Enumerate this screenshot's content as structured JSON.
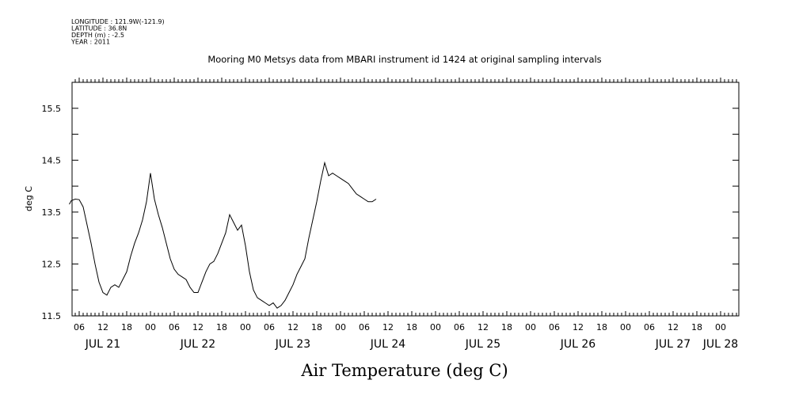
{
  "header": {
    "meta_lines": [
      "LONGITUDE : 121.9W(-121.9)",
      "LATITUDE : 36.8N",
      "DEPTH (m) : -2.5",
      "YEAR : 2011"
    ],
    "title": "Mooring M0 Metsys data from MBARI instrument id 1424 at original sampling intervals"
  },
  "chart_data": {
    "type": "line",
    "title": "Mooring M0 Metsys data from MBARI instrument id 1424 at original sampling intervals",
    "xlabel": "Air Temperature (deg C)",
    "ylabel": "deg C",
    "x_unit": "hours from JUL 21 00:00 (2011)",
    "xlim": [
      3.5,
      81.5
    ],
    "ylim": [
      11.5,
      16.0
    ],
    "y_ticks": [
      11.5,
      12.5,
      13.5,
      14.5,
      15.5
    ],
    "x_hour_ticks": [
      {
        "x": 6,
        "label": "06"
      },
      {
        "x": 12,
        "label": "12"
      },
      {
        "x": 18,
        "label": "18"
      },
      {
        "x": 24,
        "label": "00"
      },
      {
        "x": 30,
        "label": "06"
      },
      {
        "x": 36,
        "label": "12"
      },
      {
        "x": 42,
        "label": "18"
      },
      {
        "x": 48,
        "label": "00"
      },
      {
        "x": 54,
        "label": "06"
      },
      {
        "x": 60,
        "label": "12"
      },
      {
        "x": 66,
        "label": "18"
      },
      {
        "x": 72,
        "label": "00"
      },
      {
        "x": 78,
        "label": "06"
      },
      {
        "x": 84,
        "label": "12"
      },
      {
        "x": 90,
        "label": "18"
      },
      {
        "x": 96,
        "label": "00"
      },
      {
        "x": 102,
        "label": "06"
      },
      {
        "x": 108,
        "label": "12"
      },
      {
        "x": 114,
        "label": "18"
      },
      {
        "x": 120,
        "label": "00"
      },
      {
        "x": 126,
        "label": "06"
      },
      {
        "x": 132,
        "label": "12"
      },
      {
        "x": 138,
        "label": "18"
      },
      {
        "x": 144,
        "label": "00"
      },
      {
        "x": 150,
        "label": "06"
      },
      {
        "x": 156,
        "label": "12"
      },
      {
        "x": 162,
        "label": "18"
      },
      {
        "x": 168,
        "label": "00"
      }
    ],
    "day_labels": [
      {
        "x": 12,
        "label": "JUL 21"
      },
      {
        "x": 36,
        "label": "JUL 22"
      },
      {
        "x": 60,
        "label": "JUL 23"
      },
      {
        "x": 84,
        "label": "JUL 24"
      },
      {
        "x": 108,
        "label": "JUL 25"
      },
      {
        "x": 132,
        "label": "JUL 26"
      },
      {
        "x": 156,
        "label": "JUL 27"
      },
      {
        "x": 168,
        "label": "JUL 28"
      }
    ],
    "series": [
      {
        "color": "#000000",
        "points": [
          [
            3.5,
            13.65
          ],
          [
            4,
            13.72
          ],
          [
            5,
            13.75
          ],
          [
            6,
            13.74
          ],
          [
            7,
            13.6
          ],
          [
            8,
            13.25
          ],
          [
            9,
            12.9
          ],
          [
            10,
            12.5
          ],
          [
            11,
            12.15
          ],
          [
            12,
            11.95
          ],
          [
            13,
            11.9
          ],
          [
            14,
            12.05
          ],
          [
            15,
            12.1
          ],
          [
            16,
            12.05
          ],
          [
            17,
            12.2
          ],
          [
            18,
            12.35
          ],
          [
            19,
            12.65
          ],
          [
            20,
            12.9
          ],
          [
            21,
            13.1
          ],
          [
            22,
            13.35
          ],
          [
            23,
            13.7
          ],
          [
            24,
            14.25
          ],
          [
            25,
            13.75
          ],
          [
            26,
            13.45
          ],
          [
            27,
            13.2
          ],
          [
            28,
            12.9
          ],
          [
            29,
            12.6
          ],
          [
            30,
            12.4
          ],
          [
            31,
            12.3
          ],
          [
            32,
            12.25
          ],
          [
            33,
            12.2
          ],
          [
            34,
            12.05
          ],
          [
            35,
            11.95
          ],
          [
            36,
            11.95
          ],
          [
            37,
            12.15
          ],
          [
            38,
            12.35
          ],
          [
            39,
            12.5
          ],
          [
            40,
            12.55
          ],
          [
            41,
            12.7
          ],
          [
            42,
            12.9
          ],
          [
            43,
            13.1
          ],
          [
            44,
            13.45
          ],
          [
            45,
            13.3
          ],
          [
            46,
            13.15
          ],
          [
            47,
            13.25
          ],
          [
            48,
            12.85
          ],
          [
            49,
            12.35
          ],
          [
            50,
            12.0
          ],
          [
            51,
            11.85
          ],
          [
            52,
            11.8
          ],
          [
            53,
            11.75
          ],
          [
            54,
            11.7
          ],
          [
            55,
            11.75
          ],
          [
            56,
            11.65
          ],
          [
            57,
            11.7
          ],
          [
            58,
            11.8
          ],
          [
            59,
            11.95
          ],
          [
            60,
            12.1
          ],
          [
            61,
            12.3
          ],
          [
            62,
            12.45
          ],
          [
            63,
            12.6
          ],
          [
            64,
            13.0
          ],
          [
            65,
            13.35
          ],
          [
            66,
            13.7
          ],
          [
            67,
            14.1
          ],
          [
            68,
            14.45
          ],
          [
            69,
            14.2
          ],
          [
            70,
            14.25
          ],
          [
            71,
            14.2
          ],
          [
            72,
            14.15
          ],
          [
            73,
            14.1
          ],
          [
            74,
            14.05
          ],
          [
            75,
            13.95
          ],
          [
            76,
            13.85
          ],
          [
            77,
            13.8
          ],
          [
            78,
            13.75
          ],
          [
            79,
            13.7
          ],
          [
            80,
            13.7
          ],
          [
            81,
            13.75
          ]
        ]
      }
    ],
    "grid": false,
    "legend": "none"
  }
}
